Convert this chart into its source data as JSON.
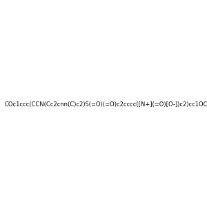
{
  "smiles": "COc1ccc(CCN(Cc2cnn(C)c2)S(=O)(=O)c2cccc([N+](=O)[O-])c2)cc1OC",
  "image_size": 300,
  "background_color": "#e8e8e8",
  "bond_color": "#1a1a1a",
  "atom_colors": {
    "N": "#0000ff",
    "O": "#ff0000",
    "S": "#cccc00"
  }
}
